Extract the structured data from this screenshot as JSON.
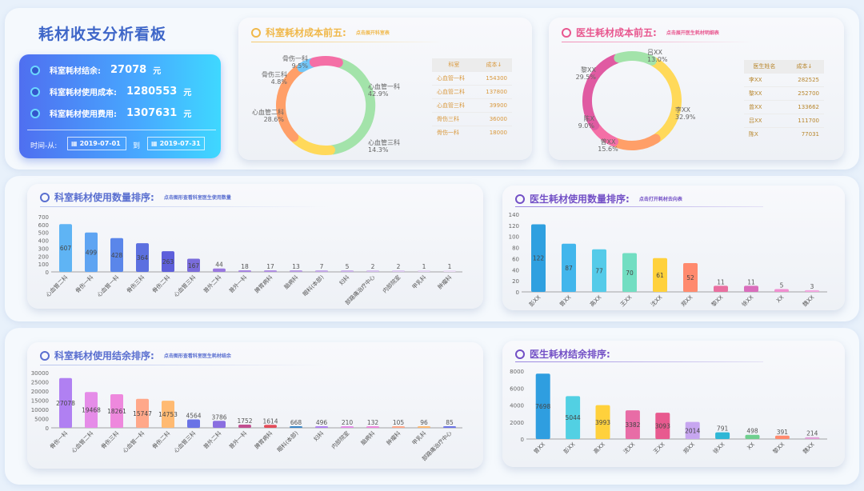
{
  "page_title": "耗材收支分析看板",
  "summary": {
    "rows": [
      {
        "label": "科室耗材结余:",
        "value": "27078",
        "unit": "元"
      },
      {
        "label": "科室耗材使用成本:",
        "value": "1280553",
        "unit": "元"
      },
      {
        "label": "科室耗材使用费用:",
        "value": "1307631",
        "unit": "元"
      }
    ],
    "date_label": "时间-从:",
    "date_to": "到",
    "date_from_value": "2019-07-01",
    "date_to_value": "2019-07-31"
  },
  "colors": {
    "ring": [
      "#f46fa6",
      "#a3e3aa",
      "#ffd95a",
      "#ff9f68",
      "#72c6f7"
    ],
    "bars_dept": [
      "#5fb4f4",
      "#5ea4f2",
      "#5a86ea",
      "#5c70e0",
      "#5e5fdb",
      "#7a6cdb",
      "#9a78e0",
      "#a683e2",
      "#b08de3",
      "#b89ae5",
      "#c3a7e8",
      "#cbb3ea",
      "#d4bfed",
      "#dccaf0",
      "#e4d5f3",
      "#ebdff6"
    ],
    "bars_doc_use": [
      "#2fa0e0",
      "#42b6ec",
      "#55cbe9",
      "#72dec2",
      "#ffd13c",
      "#ff8a6e",
      "#e96fa0",
      "#d96dbc",
      "#f08fd0",
      "#f2a7e0"
    ],
    "bars_dept_bal": [
      "#b080f2",
      "#e58ce8",
      "#ee88dd",
      "#ffa88a",
      "#ffba72",
      "#6a73e6",
      "#8a6ee0",
      "#c24f90",
      "#e34d5a",
      "#3a85c6"
    ],
    "bars_doc_bal": [
      "#2f9ee0",
      "#52d0e3",
      "#ffd13c",
      "#e86ca6",
      "#e85a8f",
      "#c7a6f0",
      "#2fb7d6",
      "#6fcf8f",
      "#ff8a6e",
      "#e2a0d8"
    ]
  },
  "dept_cost_card": {
    "title": "科室耗材成本前五:",
    "hint": "点击展开科室表",
    "table_headers": [
      "科室",
      "成本↓"
    ],
    "table_rows": [
      [
        "心血管一科",
        "154300"
      ],
      [
        "心血管二科",
        "137800"
      ],
      [
        "心血管三科",
        "39900"
      ],
      [
        "骨伤三科",
        "36000"
      ],
      [
        "骨伤一科",
        "18000"
      ]
    ],
    "ring_labels": [
      {
        "name": "骨伤一科",
        "pct": "9.5%"
      },
      {
        "name": "心血管一科",
        "pct": "42.9%"
      },
      {
        "name": "心血管三科",
        "pct": "14.3%"
      },
      {
        "name": "心血管二科",
        "pct": "28.6%"
      },
      {
        "name": "骨伤三科",
        "pct": "4.8%"
      }
    ]
  },
  "doc_cost_card": {
    "title": "医生耗材成本前五:",
    "hint": "点击展开医生耗材明细表",
    "table_headers": [
      "医生姓名",
      "成本↓"
    ],
    "table_rows": [
      [
        "李XX",
        "282525"
      ],
      [
        "黎XX",
        "252700"
      ],
      [
        "曾XX",
        "133662"
      ],
      [
        "吕XX",
        "111700"
      ],
      [
        "陈X",
        "77031"
      ]
    ],
    "ring_labels": [
      {
        "name": "吕XX",
        "pct": "13.0%"
      },
      {
        "name": "李XX",
        "pct": "32.9%"
      },
      {
        "name": "曾XX",
        "pct": "15.6%"
      },
      {
        "name": "陈X",
        "pct": "9.0%"
      },
      {
        "name": "黎XX",
        "pct": "29.5%"
      }
    ]
  },
  "dept_use_card": {
    "title": "科室耗材使用数量排序:",
    "hint": "点击图形查看科室医生使用数量"
  },
  "doc_use_card": {
    "title": "医生耗材使用数量排序:",
    "hint": "点击打开耗材去向表"
  },
  "dept_bal_card": {
    "title": "科室耗材使用结余排序:",
    "hint": "点击图形查看科室医生耗材结余"
  },
  "doc_bal_card": {
    "title": "医生耗材结余排序:"
  },
  "chart_data": [
    {
      "type": "pie",
      "title": "科室耗材成本前五:",
      "categories": [
        "心血管一科",
        "心血管三科",
        "心血管二科",
        "骨伤三科",
        "骨伤一科"
      ],
      "values": [
        42.9,
        14.3,
        28.6,
        4.8,
        9.5
      ]
    },
    {
      "type": "pie",
      "title": "医生耗材成本前五:",
      "categories": [
        "李XX",
        "曾XX",
        "陈X",
        "黎XX",
        "吕XX"
      ],
      "values": [
        32.9,
        15.6,
        9.0,
        29.5,
        13.0
      ]
    },
    {
      "type": "bar",
      "title": "科室耗材使用数量排序:",
      "categories": [
        "心血管二科",
        "骨伤一科",
        "心血管一科",
        "骨伤三科",
        "骨伤二科",
        "心血管三科",
        "普外二科",
        "普外一科",
        "脾胃病科",
        "脑病科",
        "眼科(本部)",
        "妇科",
        "部路痛治疗中心",
        "内部院室",
        "甲乳科",
        "肿瘤科"
      ],
      "values": [
        607,
        499,
        428,
        364,
        263,
        167,
        44,
        18,
        17,
        13,
        7,
        5,
        2,
        2,
        1,
        1
      ],
      "ylim": [
        0,
        700
      ],
      "yticks": [
        0,
        100,
        200,
        300,
        400,
        500,
        600,
        700
      ]
    },
    {
      "type": "bar",
      "title": "医生耗材使用数量排序:",
      "categories": [
        "彭XX",
        "曾XX",
        "高XX",
        "王XX",
        "沈XX",
        "郑XX",
        "黎XX",
        "徐XX",
        "XX",
        "魏XX"
      ],
      "values": [
        122,
        87,
        77,
        70,
        61,
        52,
        11,
        11,
        5,
        3
      ],
      "ylim": [
        0,
        140
      ],
      "yticks": [
        0,
        20,
        40,
        60,
        80,
        100,
        120,
        140
      ]
    },
    {
      "type": "bar",
      "title": "科室耗材使用结余排序:",
      "categories": [
        "骨伤一科",
        "心血管二科",
        "骨伤三科",
        "心血管一科",
        "骨伤二科",
        "心血管三科",
        "普外二科",
        "普外一科",
        "脾胃病科",
        "眼科(本部)",
        "妇科",
        "内部院室",
        "脑病科",
        "肿瘤科",
        "甲乳科",
        "部路痛治疗中心"
      ],
      "values": [
        27078,
        19468,
        18261,
        15747,
        14753,
        4564,
        3786,
        1752,
        1614,
        668,
        496,
        210,
        132,
        105,
        96,
        85
      ],
      "ylim": [
        0,
        30000
      ],
      "yticks": [
        0,
        5000,
        10000,
        15000,
        20000,
        25000,
        30000
      ]
    },
    {
      "type": "bar",
      "title": "医生耗材结余排序:",
      "categories": [
        "曾XX",
        "彭XX",
        "高XX",
        "沈XX",
        "王XX",
        "郑XX",
        "徐XX",
        "XX",
        "黎XX",
        "魏XX"
      ],
      "values": [
        7698,
        5044,
        3993,
        3382,
        3093,
        2014,
        791,
        498,
        391,
        214
      ],
      "ylim": [
        0,
        8000
      ],
      "yticks": [
        0,
        2000,
        4000,
        6000,
        8000
      ]
    }
  ]
}
